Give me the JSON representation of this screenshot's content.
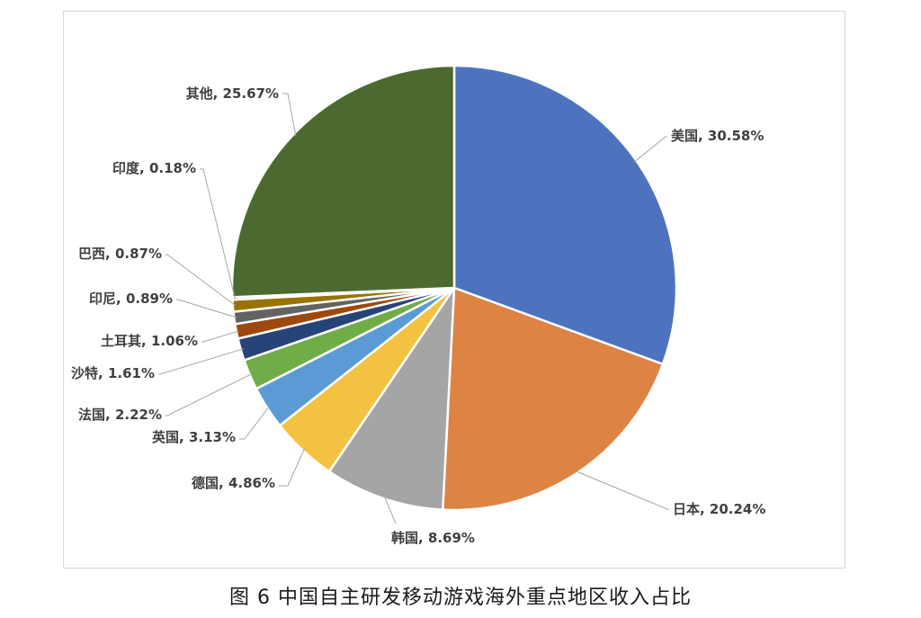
{
  "caption": "图 6  中国自主研发移动游戏海外重点地区收入占比",
  "chart_data": {
    "type": "pie",
    "title": "",
    "slices": [
      {
        "label": "美国",
        "value": 30.58,
        "text": "美国, 30.58%",
        "color": "#4e73be"
      },
      {
        "label": "日本",
        "value": 20.24,
        "text": "日本, 20.24%",
        "color": "#dd8344"
      },
      {
        "label": "韩国",
        "value": 8.69,
        "text": "韩国, 8.69%",
        "color": "#a5a5a5"
      },
      {
        "label": "德国",
        "value": 4.86,
        "text": "德国, 4.86%",
        "color": "#f4c242"
      },
      {
        "label": "英国",
        "value": 3.13,
        "text": "英国, 3.13%",
        "color": "#5b9bd5"
      },
      {
        "label": "法国",
        "value": 2.22,
        "text": "法国, 2.22%",
        "color": "#70ad47"
      },
      {
        "label": "沙特",
        "value": 1.61,
        "text": "沙特, 1.61%",
        "color": "#264478"
      },
      {
        "label": "土耳其",
        "value": 1.06,
        "text": "土耳其, 1.06%",
        "color": "#9e480e"
      },
      {
        "label": "印尼",
        "value": 0.89,
        "text": "印尼, 0.89%",
        "color": "#636363"
      },
      {
        "label": "巴西",
        "value": 0.87,
        "text": "巴西, 0.87%",
        "color": "#997300"
      },
      {
        "label": "印度",
        "value": 0.18,
        "text": "印度, 0.18%",
        "color": "#255e91"
      },
      {
        "label": "其他",
        "value": 25.67,
        "text": "其他, 25.67%",
        "color": "#4c6a2f"
      }
    ]
  }
}
